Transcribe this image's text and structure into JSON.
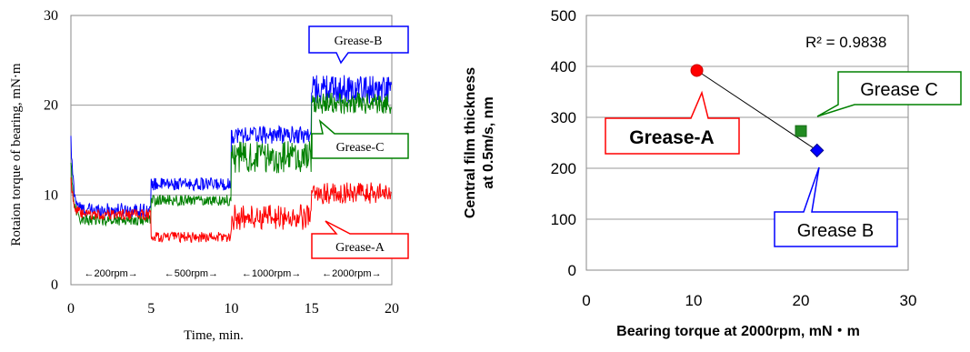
{
  "chart_data": [
    {
      "type": "line",
      "title": "",
      "xlabel": "Time, min.",
      "ylabel": "Rotaion torque of bearing, mN·m",
      "xlim": [
        0,
        20
      ],
      "ylim": [
        0,
        30
      ],
      "xticks": [
        "0",
        "5",
        "10",
        "15",
        "20"
      ],
      "yticks": [
        "0",
        "10",
        "20",
        "30"
      ],
      "grid": true,
      "speed_bands": [
        "←200rpm→",
        "←500rpm→",
        "←1000rpm→",
        "←2000rpm→"
      ],
      "series": [
        {
          "name": "Grease-B",
          "color": "#0000ff",
          "stages": [
            {
              "x0": 0,
              "x1": 5,
              "level": 8.3,
              "noise": 0.8
            },
            {
              "x0": 5,
              "x1": 10,
              "level": 11.2,
              "noise": 0.7
            },
            {
              "x0": 10,
              "x1": 15,
              "level": 16.7,
              "noise": 1.0
            },
            {
              "x0": 15,
              "x1": 20,
              "level": 21.8,
              "noise": 1.6
            }
          ],
          "start_peak": 16
        },
        {
          "name": "Grease-C",
          "color": "#008000",
          "stages": [
            {
              "x0": 0,
              "x1": 5,
              "level": 7.2,
              "noise": 0.6
            },
            {
              "x0": 5,
              "x1": 10,
              "level": 9.4,
              "noise": 0.6
            },
            {
              "x0": 10,
              "x1": 15,
              "level": 14.2,
              "noise": 1.8
            },
            {
              "x0": 15,
              "x1": 20,
              "level": 20.2,
              "noise": 1.2
            }
          ],
          "start_peak": 14
        },
        {
          "name": "Grease-A",
          "color": "#ff0000",
          "stages": [
            {
              "x0": 0,
              "x1": 5,
              "level": 7.8,
              "noise": 0.6
            },
            {
              "x0": 5,
              "x1": 10,
              "level": 5.3,
              "noise": 0.6
            },
            {
              "x0": 10,
              "x1": 15,
              "level": 7.5,
              "noise": 1.4
            },
            {
              "x0": 15,
              "x1": 20,
              "level": 10.2,
              "noise": 1.2
            }
          ],
          "start_peak": 12
        }
      ],
      "callouts": [
        "Grease-B",
        "Grease-C",
        "Grease-A"
      ]
    },
    {
      "type": "scatter",
      "title": "",
      "xlabel": "Bearing torque at 2000rpm, mN・m",
      "ylabel_line1": "Central film thickness",
      "ylabel_line2": "at 0.5m/s, nm",
      "xlim": [
        0,
        30
      ],
      "ylim": [
        0,
        500
      ],
      "xticks": [
        "0",
        "10",
        "20",
        "30"
      ],
      "yticks": [
        "0",
        "100",
        "200",
        "300",
        "400",
        "500"
      ],
      "grid": true,
      "r2_label": "R² = 0.9838",
      "points": [
        {
          "name": "Grease-A",
          "x": 10.3,
          "y": 392,
          "color": "#ff0000",
          "marker": "circle"
        },
        {
          "name": "Grease C",
          "x": 20.0,
          "y": 273,
          "color": "#228b22",
          "marker": "square"
        },
        {
          "name": "Grease B",
          "x": 21.5,
          "y": 235,
          "color": "#0000ff",
          "marker": "diamond"
        }
      ],
      "trendline": {
        "x": [
          10.3,
          21.5
        ],
        "y": [
          392,
          235
        ]
      }
    }
  ]
}
